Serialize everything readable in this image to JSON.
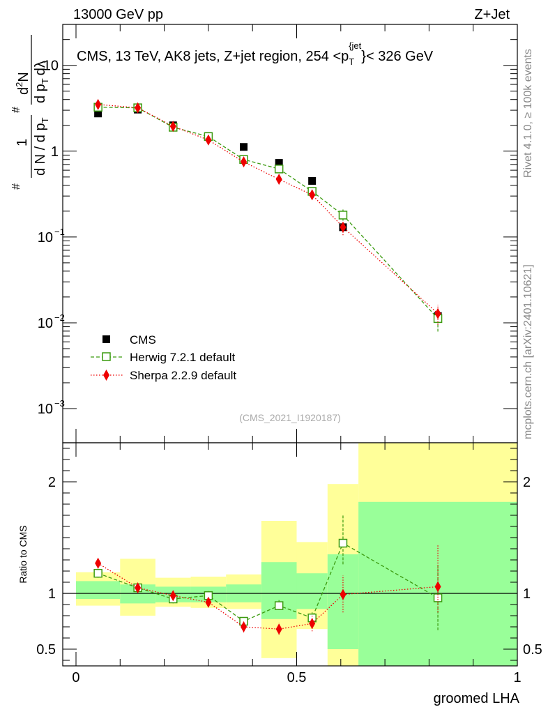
{
  "header": {
    "left": "13000 GeV pp",
    "right": "Z+Jet"
  },
  "side_texts": {
    "rivet": "Rivet 4.1.0, ≥ 100k events",
    "mcplots": "mcplots.cern.ch [arXiv:2401.10621]"
  },
  "colors": {
    "cms": "#000000",
    "herwig": "#3a9a0e",
    "sherpa": "#ee0000",
    "band_inner": "#99ff99",
    "band_outer": "#ffff99"
  },
  "chart_data": [
    {
      "type": "scatter",
      "panel": "main",
      "title": "CMS, 13 TeV, AK8 jets, Z+jet region, 254 <p_T^{jet}< 326 GeV",
      "title_parts": {
        "main": "CMS, 13 TeV, AK8 jets, Z+jet region, 254 <p",
        "sub": "T",
        "sup": "{jet",
        "sup_close": "}",
        "tail": "< 326 GeV"
      },
      "ylabel": "1/dN/dp_T d²N/dp_T dλ",
      "ylabel_parts": {
        "hash": "#",
        "one": "1",
        "denom": "d N / d p",
        "t": "T",
        "dsq": "d",
        "two": "2",
        "N": "N",
        "dpt": "d p",
        "dl": "dλ"
      },
      "yscale": "log",
      "ylim": [
        0.0004,
        30
      ],
      "xlim": [
        -0.03,
        1.0
      ],
      "y_ticks": [
        {
          "value": 0.001,
          "base": "10",
          "exp": "−3"
        },
        {
          "value": 0.01,
          "base": "10",
          "exp": "−2"
        },
        {
          "value": 0.1,
          "base": "10",
          "exp": "−1"
        },
        {
          "value": 1,
          "base": "1",
          "exp": ""
        },
        {
          "value": 10,
          "base": "10",
          "exp": ""
        }
      ],
      "watermark": "(CMS_2021_I1920187)",
      "legend": [
        {
          "key": "cms",
          "label": "CMS"
        },
        {
          "key": "herwig",
          "label": "Herwig 7.2.1 default"
        },
        {
          "key": "sherpa",
          "label": "Sherpa 2.2.9 default"
        }
      ],
      "series": [
        {
          "name": "CMS",
          "key": "cms",
          "x": [
            0.05,
            0.14,
            0.22,
            0.3,
            0.38,
            0.46,
            0.535,
            0.605,
            0.82
          ],
          "y": [
            2.75,
            3.05,
            2.0,
            1.5,
            1.12,
            0.73,
            0.45,
            0.13,
            0.012
          ]
        },
        {
          "name": "Herwig 7.2.1 default",
          "key": "herwig",
          "x": [
            0.05,
            0.14,
            0.22,
            0.3,
            0.38,
            0.46,
            0.535,
            0.605,
            0.82
          ],
          "y": [
            3.25,
            3.2,
            1.9,
            1.48,
            0.8,
            0.62,
            0.34,
            0.18,
            0.0112
          ],
          "err_lo": [
            3.05,
            3.05,
            1.78,
            1.4,
            0.75,
            0.58,
            0.31,
            0.155,
            0.0079
          ],
          "err_hi": [
            3.45,
            3.35,
            2.02,
            1.56,
            0.85,
            0.66,
            0.37,
            0.21,
            0.0145
          ]
        },
        {
          "name": "Sherpa 2.2.9 default",
          "key": "sherpa",
          "x": [
            0.05,
            0.14,
            0.22,
            0.3,
            0.38,
            0.46,
            0.535,
            0.605,
            0.82
          ],
          "y": [
            3.5,
            3.2,
            1.95,
            1.35,
            0.75,
            0.47,
            0.31,
            0.13,
            0.0128
          ],
          "err_lo": [
            3.35,
            3.05,
            1.85,
            1.28,
            0.7,
            0.43,
            0.28,
            0.105,
            0.0095
          ],
          "err_hi": [
            3.65,
            3.35,
            2.05,
            1.42,
            0.8,
            0.51,
            0.34,
            0.155,
            0.0162
          ]
        }
      ]
    },
    {
      "type": "scatter",
      "panel": "ratio",
      "ylabel": "Ratio to CMS",
      "xlabel": "groomed LHA",
      "ylim": [
        0.35,
        2.35
      ],
      "xlim": [
        -0.03,
        1.0
      ],
      "y_ticks": [
        0.5,
        1,
        2
      ],
      "x_ticks": [
        {
          "value": 0,
          "label": "0"
        },
        {
          "value": 0.5,
          "label": "0.5"
        },
        {
          "value": 1,
          "label": "1"
        }
      ],
      "reference": 1,
      "bands": [
        {
          "x0": 0.0,
          "x1": 0.1,
          "inner": [
            0.95,
            1.11
          ],
          "outer": [
            0.89,
            1.19
          ]
        },
        {
          "x0": 0.1,
          "x1": 0.18,
          "inner": [
            0.91,
            1.08
          ],
          "outer": [
            0.8,
            1.31
          ]
        },
        {
          "x0": 0.18,
          "x1": 0.26,
          "inner": [
            0.92,
            1.06
          ],
          "outer": [
            0.88,
            1.14
          ]
        },
        {
          "x0": 0.26,
          "x1": 0.34,
          "inner": [
            0.92,
            1.06
          ],
          "outer": [
            0.87,
            1.15
          ]
        },
        {
          "x0": 0.34,
          "x1": 0.42,
          "inner": [
            0.92,
            1.08
          ],
          "outer": [
            0.86,
            1.17
          ]
        },
        {
          "x0": 0.42,
          "x1": 0.5,
          "inner": [
            0.77,
            1.28
          ],
          "outer": [
            0.42,
            1.65
          ]
        },
        {
          "x0": 0.5,
          "x1": 0.57,
          "inner": [
            0.86,
            1.18
          ],
          "outer": [
            0.68,
            1.46
          ]
        },
        {
          "x0": 0.57,
          "x1": 0.64,
          "inner": [
            0.5,
            1.35
          ],
          "outer": [
            0.35,
            1.98
          ]
        },
        {
          "x0": 0.64,
          "x1": 1.0,
          "inner": [
            0.35,
            1.82
          ],
          "outer": [
            0.35,
            2.35
          ]
        }
      ],
      "series": [
        {
          "name": "Herwig 7.2.1 default",
          "key": "herwig",
          "x": [
            0.05,
            0.14,
            0.22,
            0.3,
            0.38,
            0.46,
            0.535,
            0.605,
            0.82
          ],
          "y": [
            1.18,
            1.05,
            0.95,
            0.98,
            0.75,
            0.89,
            0.78,
            1.45,
            0.96
          ],
          "err_lo": [
            1.14,
            1.01,
            0.91,
            0.94,
            0.72,
            0.85,
            0.73,
            1.26,
            0.67
          ],
          "err_hi": [
            1.22,
            1.09,
            0.99,
            1.02,
            0.78,
            0.94,
            0.83,
            1.7,
            1.25
          ]
        },
        {
          "name": "Sherpa 2.2.9 default",
          "key": "sherpa",
          "x": [
            0.05,
            0.14,
            0.22,
            0.3,
            0.38,
            0.46,
            0.535,
            0.605,
            0.82
          ],
          "y": [
            1.27,
            1.05,
            0.98,
            0.92,
            0.7,
            0.68,
            0.73,
            0.99,
            1.06
          ],
          "err_lo": [
            1.23,
            1.01,
            0.94,
            0.88,
            0.65,
            0.63,
            0.66,
            0.83,
            0.83
          ],
          "err_hi": [
            1.31,
            1.09,
            1.02,
            0.96,
            0.75,
            0.74,
            0.8,
            1.16,
            1.43
          ]
        }
      ]
    }
  ]
}
